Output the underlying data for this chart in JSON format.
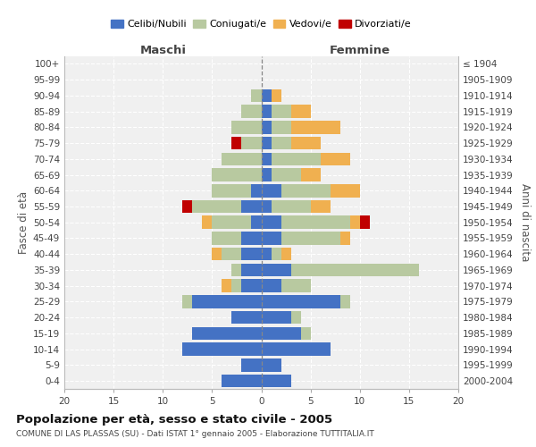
{
  "age_groups": [
    "0-4",
    "5-9",
    "10-14",
    "15-19",
    "20-24",
    "25-29",
    "30-34",
    "35-39",
    "40-44",
    "45-49",
    "50-54",
    "55-59",
    "60-64",
    "65-69",
    "70-74",
    "75-79",
    "80-84",
    "85-89",
    "90-94",
    "95-99",
    "100+"
  ],
  "birth_years": [
    "2000-2004",
    "1995-1999",
    "1990-1994",
    "1985-1989",
    "1980-1984",
    "1975-1979",
    "1970-1974",
    "1965-1969",
    "1960-1964",
    "1955-1959",
    "1950-1954",
    "1945-1949",
    "1940-1944",
    "1935-1939",
    "1930-1934",
    "1925-1929",
    "1920-1924",
    "1915-1919",
    "1910-1914",
    "1905-1909",
    "≤ 1904"
  ],
  "male_celibi": [
    4,
    2,
    8,
    7,
    3,
    7,
    2,
    2,
    2,
    2,
    1,
    2,
    1,
    0,
    0,
    0,
    0,
    0,
    0,
    0,
    0
  ],
  "male_coniugati": [
    0,
    0,
    0,
    0,
    0,
    1,
    1,
    1,
    2,
    3,
    4,
    5,
    4,
    5,
    4,
    2,
    3,
    2,
    1,
    0,
    0
  ],
  "male_vedovi": [
    0,
    0,
    0,
    0,
    0,
    0,
    1,
    0,
    1,
    0,
    1,
    0,
    0,
    0,
    0,
    0,
    0,
    0,
    0,
    0,
    0
  ],
  "male_divorziati": [
    0,
    0,
    0,
    0,
    0,
    0,
    0,
    0,
    0,
    0,
    0,
    1,
    0,
    0,
    0,
    1,
    0,
    0,
    0,
    0,
    0
  ],
  "female_celibi": [
    3,
    2,
    7,
    4,
    3,
    8,
    2,
    3,
    1,
    2,
    2,
    1,
    2,
    1,
    1,
    1,
    1,
    1,
    1,
    0,
    0
  ],
  "female_coniugati": [
    0,
    0,
    0,
    1,
    1,
    1,
    3,
    13,
    1,
    6,
    7,
    4,
    5,
    3,
    5,
    2,
    2,
    2,
    0,
    0,
    0
  ],
  "female_vedovi": [
    0,
    0,
    0,
    0,
    0,
    0,
    0,
    0,
    1,
    1,
    1,
    2,
    3,
    2,
    3,
    3,
    5,
    2,
    1,
    0,
    0
  ],
  "female_divorziati": [
    0,
    0,
    0,
    0,
    0,
    0,
    0,
    0,
    0,
    0,
    1,
    0,
    0,
    0,
    0,
    0,
    0,
    0,
    0,
    0,
    0
  ],
  "color_celibi": "#4472c4",
  "color_coniugati": "#b8c9a0",
  "color_vedovi": "#f0b050",
  "color_divorziati": "#c00000",
  "title": "Popolazione per età, sesso e stato civile - 2005",
  "subtitle": "COMUNE DI LAS PLASSAS (SU) - Dati ISTAT 1° gennaio 2005 - Elaborazione TUTTITALIA.IT",
  "label_maschi": "Maschi",
  "label_femmine": "Femmine",
  "ylabel_left": "Fasce di età",
  "ylabel_right": "Anni di nascita",
  "legend_labels": [
    "Celibi/Nubili",
    "Coniugati/e",
    "Vedovi/e",
    "Divorziati/e"
  ],
  "xlim": 20
}
